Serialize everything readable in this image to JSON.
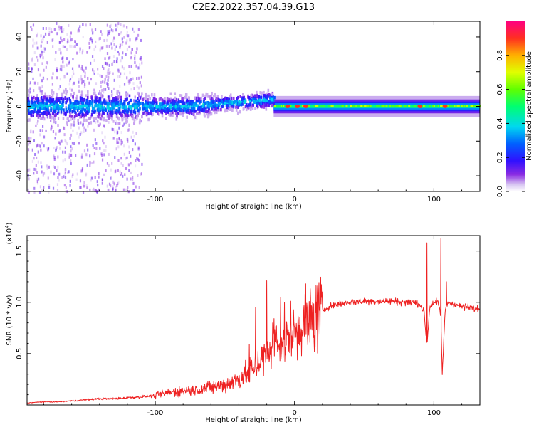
{
  "title": "C2E2.2022.357.04.39.G13",
  "colors": {
    "snr_line": "#ee2222",
    "frame": "#000000",
    "background": "#ffffff"
  },
  "chart_data": [
    {
      "type": "heatmap",
      "title": "",
      "xlabel": "Height of straight line (km)",
      "ylabel": "Frequency (Hz)",
      "xlim": [
        -192,
        133
      ],
      "ylim": [
        -49,
        49
      ],
      "x_ticks": [
        -100,
        0,
        100
      ],
      "x_tick_labels": [
        "-100",
        "0",
        "100"
      ],
      "y_ticks": [
        -40,
        -20,
        0,
        20,
        40
      ],
      "y_tick_labels": [
        "-40",
        "-20",
        "0",
        "20",
        "40"
      ],
      "colormap": "rainbow",
      "colorbar": {
        "label": "Normalized spectral amplitude",
        "range": [
          0,
          1
        ],
        "ticks": [
          0.0,
          0.2,
          0.4,
          0.6,
          0.8
        ],
        "tick_labels": [
          "0.0",
          "0.2",
          "0.4",
          "0.6",
          "0.8"
        ]
      },
      "features": {
        "carrier_frequency_hz": 0,
        "noisy_region_km": [
          -192,
          -110
        ],
        "broadening_region_km": [
          -110,
          -15
        ],
        "stable_region_km": [
          -15,
          133
        ],
        "high_amplitude_heights_km": [
          -5,
          2,
          8,
          90,
          108
        ]
      }
    },
    {
      "type": "line",
      "title": "",
      "xlabel": "Height of straight line (km)",
      "ylabel": "SNR (10 * v/v)",
      "y_multiplier": "(x10^4)",
      "xlim": [
        -192,
        133
      ],
      "ylim": [
        0,
        1.65
      ],
      "x_ticks": [
        -100,
        0,
        100
      ],
      "x_tick_labels": [
        "-100",
        "0",
        "100"
      ],
      "y_ticks": [
        0.5,
        1.0,
        1.5
      ],
      "y_tick_labels": [
        "0.5",
        "1.0",
        "1.5"
      ],
      "series": [
        {
          "x": [
            -192,
            -180,
            -170,
            -160,
            -150,
            -140,
            -130,
            -120,
            -110,
            -100,
            -90,
            -80,
            -70,
            -60,
            -50,
            -40,
            -35,
            -30,
            -25,
            -20,
            -15,
            -10,
            -5,
            0,
            5,
            10,
            15,
            20,
            25,
            30,
            40,
            50,
            60,
            70,
            80,
            85,
            90,
            93,
            95,
            97,
            100,
            103,
            105,
            106,
            108,
            110,
            115,
            120,
            125,
            133
          ],
          "y": [
            0.02,
            0.03,
            0.03,
            0.04,
            0.05,
            0.06,
            0.06,
            0.07,
            0.08,
            0.09,
            0.12,
            0.14,
            0.15,
            0.17,
            0.2,
            0.25,
            0.3,
            0.36,
            0.42,
            0.5,
            0.55,
            0.6,
            0.66,
            0.72,
            0.76,
            0.8,
            0.86,
            0.92,
            0.96,
            0.98,
            1.0,
            1.01,
            1.01,
            1.01,
            1.0,
            1.0,
            0.98,
            0.9,
            0.57,
            0.95,
            1.0,
            1.0,
            0.85,
            0.3,
            0.9,
            1.0,
            0.98,
            0.96,
            0.95,
            0.93
          ]
        }
      ],
      "peaks": [
        {
          "x": -28,
          "y": 0.95
        },
        {
          "x": -20,
          "y": 1.21
        },
        {
          "x": -10,
          "y": 1.05
        },
        {
          "x": 8,
          "y": 1.18
        },
        {
          "x": 95,
          "y": 1.58
        },
        {
          "x": 105,
          "y": 1.62
        },
        {
          "x": 109,
          "y": 1.2
        }
      ]
    }
  ]
}
